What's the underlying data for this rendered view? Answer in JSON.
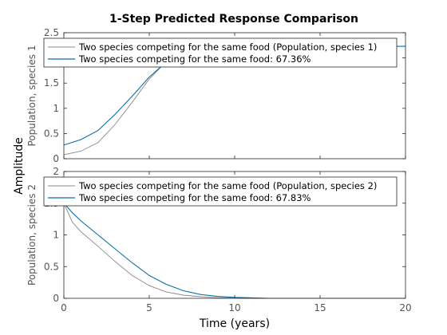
{
  "figure": {
    "title": "1-Step Predicted Response Comparison",
    "ylabel": "Amplitude",
    "xlabel": "Time (years)"
  },
  "colors": {
    "measured": "#888888",
    "predicted": "#0a6fa6",
    "axes": "#262626"
  },
  "chart_data": [
    {
      "type": "line",
      "ylabel": "Population, species 1",
      "xlim": [
        0,
        20
      ],
      "ylim": [
        0,
        2.5
      ],
      "yticks": [
        "0",
        "0.5",
        "1",
        "1.5",
        "2",
        "2.5"
      ],
      "xticks": [],
      "legend_position": "top",
      "series": [
        {
          "name": "Two species competing for the same food (Population, species 1)",
          "x": [
            0,
            1,
            2,
            3,
            4,
            5,
            6,
            7,
            8,
            10,
            15,
            20
          ],
          "y": [
            0.08,
            0.15,
            0.32,
            0.68,
            1.12,
            1.58,
            1.93,
            2.13,
            2.2,
            2.23,
            2.23,
            2.23
          ]
        },
        {
          "name": "Two species competing for the same food: 67.36%",
          "x": [
            0,
            1,
            2,
            3,
            4,
            5,
            6,
            7,
            8,
            10,
            15,
            20
          ],
          "y": [
            0.27,
            0.38,
            0.56,
            0.88,
            1.24,
            1.62,
            1.92,
            2.1,
            2.18,
            2.22,
            2.23,
            2.23
          ]
        }
      ]
    },
    {
      "type": "line",
      "ylabel": "Population, species 2",
      "xlim": [
        0,
        20
      ],
      "ylim": [
        0,
        2
      ],
      "yticks": [
        "0",
        "0.5",
        "1",
        "1.5",
        "2"
      ],
      "xticks": [
        "0",
        "5",
        "10",
        "15",
        "20"
      ],
      "legend_position": "top",
      "series": [
        {
          "name": "Two species competing for the same food (Population, species 2)",
          "x": [
            0,
            0.5,
            1,
            2,
            3,
            4,
            5,
            6,
            7,
            8,
            9,
            10,
            12,
            15,
            20
          ],
          "y": [
            1.5,
            1.2,
            1.05,
            0.82,
            0.58,
            0.36,
            0.2,
            0.1,
            0.05,
            0.025,
            0.01,
            0.005,
            0,
            0,
            0
          ]
        },
        {
          "name": "Two species competing for the same food: 67.83%",
          "x": [
            0,
            0.5,
            1,
            2,
            3,
            4,
            5,
            6,
            7,
            8,
            9,
            10,
            12,
            15,
            20
          ],
          "y": [
            1.5,
            1.35,
            1.22,
            1.0,
            0.78,
            0.56,
            0.36,
            0.22,
            0.12,
            0.06,
            0.03,
            0.015,
            0,
            0,
            0
          ]
        }
      ]
    }
  ]
}
